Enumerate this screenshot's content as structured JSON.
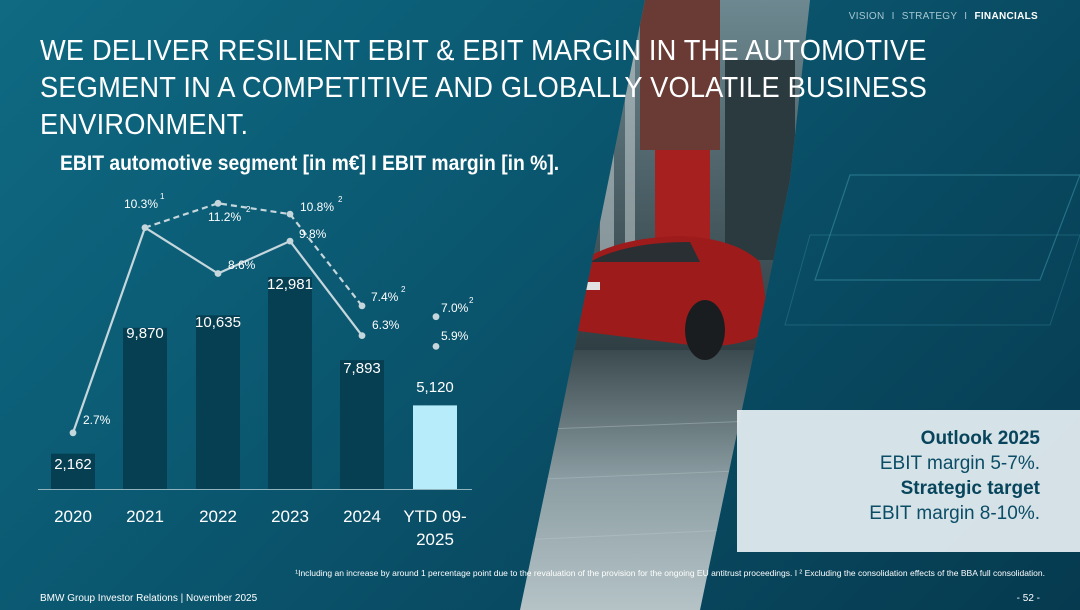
{
  "nav": {
    "items": [
      "VISION",
      "STRATEGY",
      "FINANCIALS"
    ],
    "separator": "I",
    "active": "FINANCIALS"
  },
  "title": "WE DELIVER RESILIENT EBIT & EBIT MARGIN IN THE AUTOMOTIVE SEGMENT IN A COMPETITIVE AND GLOBALLY VOLATILE BUSINESS ENVIRONMENT.",
  "chart_data": {
    "type": "bar",
    "title": "EBIT automotive segment [in m€] I EBIT margin [in %].",
    "categories": [
      "2020",
      "2021",
      "2022",
      "2023",
      "2024",
      "YTD 09-2025"
    ],
    "category_lines": [
      [
        "2020"
      ],
      [
        "2021"
      ],
      [
        "2022"
      ],
      [
        "2023"
      ],
      [
        "2024"
      ],
      [
        "YTD 09-",
        "2025"
      ]
    ],
    "ylim": [
      0,
      14000
    ],
    "series": [
      {
        "name": "EBIT automotive segment [in m€]",
        "type": "bar",
        "values": [
          2162,
          9870,
          10635,
          12981,
          7893,
          5120
        ],
        "labels": [
          "2,162",
          "9,870",
          "10,635",
          "12,981",
          "7,893",
          "5,120"
        ],
        "colors": [
          "#063f52",
          "#063f52",
          "#063f52",
          "#063f52",
          "#063f52",
          "#b7ecfa"
        ]
      },
      {
        "name": "EBIT margin [in %]",
        "type": "line",
        "style": "solid",
        "values": [
          2.7,
          10.3,
          8.6,
          9.8,
          6.3,
          5.9
        ],
        "labels": [
          "2.7%",
          "10.3%",
          "8.6%",
          "9.8%",
          "6.3%",
          "5.9%"
        ],
        "superscripts": [
          "",
          "1",
          "",
          "",
          "",
          ""
        ]
      },
      {
        "name": "EBIT margin excluding BBA consolidation effects [in %]",
        "type": "line",
        "style": "dashed",
        "values": [
          null,
          10.3,
          11.2,
          10.8,
          7.4,
          7.0
        ],
        "labels": [
          "",
          "",
          "11.2%",
          "10.8%",
          "7.4%",
          "7.0%"
        ],
        "superscripts": [
          "",
          "",
          "2",
          "2",
          "2",
          "2"
        ]
      }
    ],
    "margin_ylim": [
      0,
      12
    ]
  },
  "outlook": {
    "heading1": "Outlook 2025",
    "value1": "EBIT margin 5-7%.",
    "heading2": "Strategic target",
    "value2": "EBIT margin 8-10%."
  },
  "footnote": "¹Including an increase by around 1 percentage point due to the revaluation of the provision for the ongoing EU antitrust proceedings. I ² Excluding the consolidation effects of the BBA full consolidation.",
  "footer": {
    "left": "BMW Group Investor Relations | November 2025",
    "page": "- 52 -"
  },
  "colors": {
    "bar": "#063f52",
    "bar_highlight": "#b7ecfa",
    "margin_line": "#c5d6dc",
    "box_text": "#08455c"
  }
}
